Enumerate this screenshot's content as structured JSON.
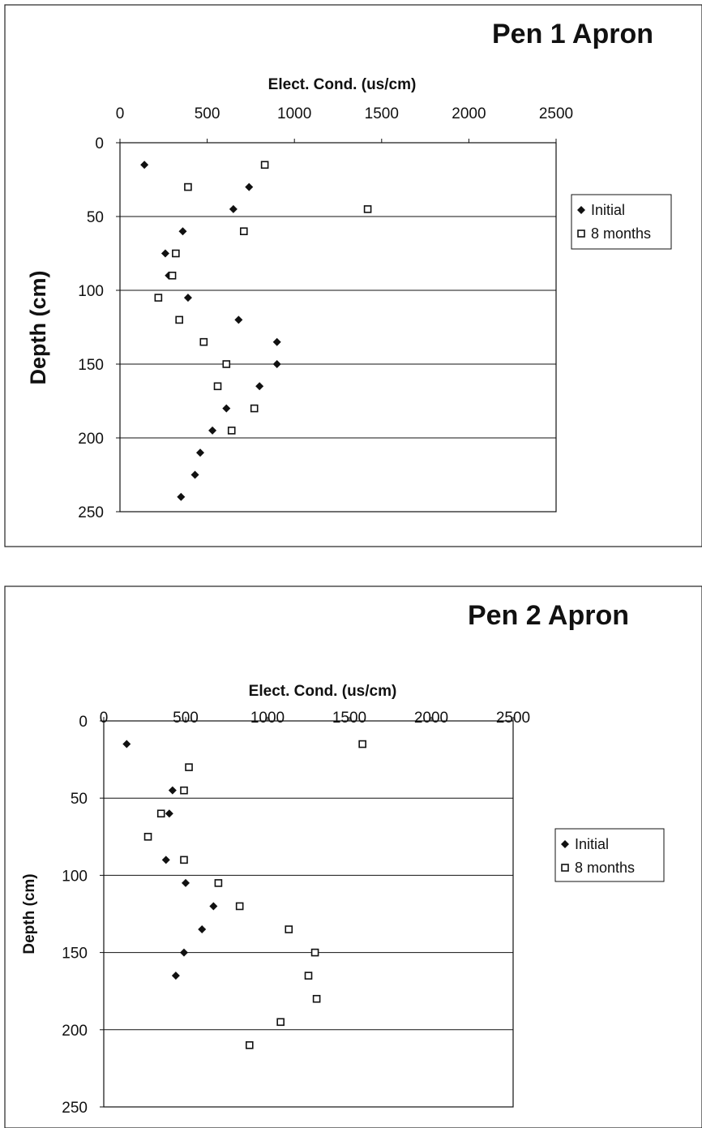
{
  "chart_data": [
    {
      "type": "scatter",
      "title": "Pen 1 Apron",
      "xlabel": "Elect. Cond. (us/cm)",
      "ylabel": "Depth (cm)",
      "xlim": [
        0,
        2500
      ],
      "ylim": [
        0,
        250
      ],
      "x_ticks": [
        0,
        500,
        1000,
        1500,
        2000,
        2500
      ],
      "y_ticks": [
        0,
        50,
        100,
        150,
        200,
        250
      ],
      "y_inverted": true,
      "x_axis_position": "top",
      "grid": "horizontal major lines",
      "legend_position": "right",
      "series": [
        {
          "name": "Initial",
          "marker": "filled-diamond",
          "points": [
            [
              140,
              15
            ],
            [
              740,
              30
            ],
            [
              650,
              45
            ],
            [
              360,
              60
            ],
            [
              260,
              75
            ],
            [
              280,
              90
            ],
            [
              390,
              105
            ],
            [
              680,
              120
            ],
            [
              900,
              135
            ],
            [
              900,
              150
            ],
            [
              800,
              165
            ],
            [
              610,
              180
            ],
            [
              530,
              195
            ],
            [
              460,
              210
            ],
            [
              430,
              225
            ],
            [
              350,
              240
            ]
          ]
        },
        {
          "name": "8 months",
          "marker": "open-square",
          "points": [
            [
              830,
              15
            ],
            [
              390,
              30
            ],
            [
              1420,
              45
            ],
            [
              710,
              60
            ],
            [
              320,
              75
            ],
            [
              300,
              90
            ],
            [
              220,
              105
            ],
            [
              340,
              120
            ],
            [
              480,
              135
            ],
            [
              610,
              150
            ],
            [
              560,
              165
            ],
            [
              770,
              180
            ],
            [
              640,
              195
            ]
          ]
        }
      ]
    },
    {
      "type": "scatter",
      "title": "Pen 2 Apron",
      "xlabel": "Elect. Cond. (us/cm)",
      "ylabel": "Depth (cm)",
      "xlim": [
        0,
        2500
      ],
      "ylim": [
        0,
        250
      ],
      "x_ticks": [
        0,
        500,
        1000,
        1500,
        2000,
        2500
      ],
      "y_ticks": [
        0,
        50,
        100,
        150,
        200,
        250
      ],
      "y_inverted": true,
      "x_axis_position": "top",
      "grid": "horizontal major lines",
      "legend_position": "right",
      "series": [
        {
          "name": "Initial",
          "marker": "filled-diamond",
          "points": [
            [
              140,
              15
            ],
            [
              420,
              45
            ],
            [
              400,
              60
            ],
            [
              380,
              90
            ],
            [
              500,
              105
            ],
            [
              670,
              120
            ],
            [
              600,
              135
            ],
            [
              490,
              150
            ],
            [
              440,
              165
            ]
          ]
        },
        {
          "name": "8 months",
          "marker": "open-square",
          "points": [
            [
              1580,
              15
            ],
            [
              520,
              30
            ],
            [
              490,
              45
            ],
            [
              350,
              60
            ],
            [
              270,
              75
            ],
            [
              490,
              90
            ],
            [
              700,
              105
            ],
            [
              830,
              120
            ],
            [
              1130,
              135
            ],
            [
              1290,
              150
            ],
            [
              1250,
              165
            ],
            [
              1300,
              180
            ],
            [
              1080,
              195
            ],
            [
              890,
              210
            ]
          ]
        }
      ]
    }
  ]
}
